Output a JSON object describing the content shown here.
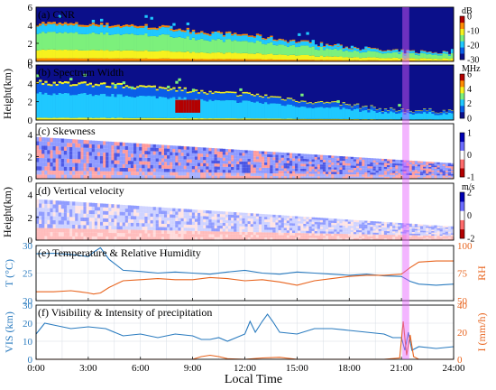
{
  "chart_data": [
    {
      "id": "a",
      "type": "heatmap",
      "title": "(a) CNR",
      "ylabel": "Height(km)",
      "yticks": [
        "0",
        "2",
        "4",
        "6"
      ],
      "ylim": [
        0,
        6
      ],
      "colorbar": {
        "unit": "dB",
        "ticks": [
          "0",
          "-10",
          "-20",
          "-30"
        ],
        "range": [
          -30,
          0
        ],
        "colors": [
          "#0b0f8a",
          "#0a5ee8",
          "#1fc8ff",
          "#7cf07c",
          "#f6f21e",
          "#ff8a00",
          "#b40000"
        ]
      },
      "top_boundary_km": [
        [
          0,
          4.3
        ],
        [
          3,
          4.1
        ],
        [
          6,
          4.0
        ],
        [
          8,
          3.7
        ],
        [
          10,
          3.2
        ],
        [
          12,
          3.0
        ],
        [
          14,
          2.5
        ],
        [
          16,
          2.0
        ],
        [
          18,
          1.6
        ],
        [
          20,
          1.2
        ],
        [
          21,
          1.1
        ],
        [
          22,
          1.1
        ],
        [
          24,
          1.0
        ]
      ]
    },
    {
      "id": "b",
      "type": "heatmap",
      "title": "(b) Spectrum Width",
      "yticks": [
        "0",
        "2",
        "4",
        "6"
      ],
      "ylim": [
        0,
        6
      ],
      "colorbar": {
        "unit": "MHz",
        "ticks": [
          "6",
          "4",
          "2",
          "0"
        ],
        "range": [
          0,
          6
        ],
        "colors": [
          "#0b0f8a",
          "#0a5ee8",
          "#1fc8ff",
          "#7cf07c",
          "#f6f21e",
          "#ff8a00",
          "#b40000"
        ]
      },
      "top_boundary_km": [
        [
          0,
          4.2
        ],
        [
          3,
          4.0
        ],
        [
          6,
          3.7
        ],
        [
          8,
          3.5
        ],
        [
          10,
          3.0
        ],
        [
          12,
          2.9
        ],
        [
          14,
          2.5
        ],
        [
          16,
          2.0
        ],
        [
          18,
          1.7
        ],
        [
          20,
          1.2
        ],
        [
          21,
          1.1
        ],
        [
          24,
          1.0
        ]
      ]
    },
    {
      "id": "c",
      "type": "heatmap",
      "title": "(c) Skewness",
      "ylabel": "Height(km)",
      "yticks": [
        "0",
        "2",
        "4"
      ],
      "ylim": [
        0,
        5
      ],
      "colorbar": {
        "unit": "",
        "ticks": [
          "1",
          "0",
          "-1"
        ],
        "range": [
          -1,
          1
        ],
        "colors": [
          "#b40000",
          "#ff6a6a",
          "#ffffff",
          "#6a6aff",
          "#0000b4"
        ]
      }
    },
    {
      "id": "d",
      "type": "heatmap",
      "title": "(d) Vertical velocity",
      "yticks": [
        "0",
        "2",
        "4"
      ],
      "ylim": [
        0,
        5
      ],
      "colorbar": {
        "unit": "m/s",
        "ticks": [
          "2",
          "0",
          "-2"
        ],
        "range": [
          -2,
          2
        ],
        "colors": [
          "#b40000",
          "#ff6a6a",
          "#ffffff",
          "#6a6aff",
          "#0000b4"
        ]
      }
    },
    {
      "id": "e",
      "type": "line",
      "title": "(e) Temperature & Relative Humidity",
      "ylabel_left": "T (°C)",
      "ylabel_right": "RH",
      "yticks_left": [
        "20",
        "25",
        "30"
      ],
      "ylim_left": [
        20,
        30
      ],
      "yticks_right": [
        "50",
        "75",
        "100"
      ],
      "ylim_right": [
        50,
        100
      ],
      "series": [
        {
          "axis": "left",
          "color": "#2a7bbf",
          "x": [
            0,
            1,
            2,
            2.5,
            3,
            3.3,
            3.7,
            4.2,
            5,
            6,
            7,
            8,
            9,
            10,
            11,
            12,
            13,
            14,
            15,
            16,
            17,
            18,
            19,
            20,
            21,
            21.5,
            22,
            23,
            24
          ],
          "y": [
            28.5,
            28.6,
            28.4,
            28.2,
            28.0,
            28.8,
            29.6,
            27.5,
            25.5,
            25.3,
            25.0,
            25.2,
            25.0,
            24.8,
            25.2,
            25.5,
            25.0,
            24.8,
            25.2,
            25.0,
            24.8,
            24.6,
            24.8,
            24.5,
            24.4,
            23.5,
            23.0,
            22.8,
            23.0
          ]
        },
        {
          "axis": "right",
          "color": "#e8641e",
          "x": [
            0,
            1,
            2,
            2.5,
            3,
            3.3,
            3.7,
            4.2,
            5,
            6,
            7,
            8,
            9,
            10,
            11,
            12,
            13,
            14,
            15,
            16,
            17,
            18,
            19,
            20,
            21,
            21.5,
            22,
            23,
            24
          ],
          "y": [
            58,
            58,
            59,
            58,
            57,
            56,
            57,
            62,
            68,
            69,
            70,
            69,
            69,
            71,
            70,
            68,
            69,
            67,
            64,
            68,
            70,
            72,
            73,
            73,
            74,
            80,
            85,
            86,
            86
          ]
        }
      ]
    },
    {
      "id": "f",
      "type": "line",
      "title": "(f) Visibility & Intensity of precipitation",
      "ylabel_left": "VIS (km)",
      "ylabel_right": "I (mm/h)",
      "yticks_left": [
        "0",
        "10",
        "20",
        "30"
      ],
      "ylim_left": [
        0,
        30
      ],
      "yticks_right": [
        "0",
        "20",
        "40"
      ],
      "ylim_right": [
        0,
        40
      ],
      "xlabel": "Local Time",
      "xticks": [
        "0:00",
        "3:00",
        "6:00",
        "9:00",
        "12:00",
        "15:00",
        "18:00",
        "21:00",
        "24:00"
      ],
      "xlim": [
        0,
        24
      ],
      "series": [
        {
          "axis": "left",
          "color": "#2a7bbf",
          "x": [
            0,
            0.5,
            1,
            2,
            3,
            4,
            5,
            6,
            7,
            8,
            9,
            9.5,
            10,
            10.5,
            11,
            11.5,
            12,
            12.3,
            12.6,
            13,
            13.3,
            13.6,
            14,
            15,
            16,
            17,
            18,
            19,
            20,
            20.5,
            21,
            21.2,
            21.4,
            21.6,
            22,
            23,
            24
          ],
          "y": [
            14,
            20,
            19,
            17,
            18,
            17,
            13,
            14,
            12,
            14,
            13,
            11,
            11,
            12,
            10,
            12,
            14,
            21,
            15,
            21,
            25,
            21,
            15,
            14,
            17,
            17,
            16,
            15,
            14,
            12,
            12,
            5,
            15,
            5,
            7,
            6,
            7
          ]
        },
        {
          "axis": "right",
          "color": "#e8641e",
          "x": [
            0,
            8,
            9,
            9.5,
            10,
            10.5,
            11,
            12,
            13,
            14,
            15,
            18,
            20,
            20.9,
            21.1,
            21.3,
            21.5,
            21.7,
            22,
            24
          ],
          "y": [
            0,
            0,
            0,
            2,
            3,
            2,
            0.5,
            0,
            1,
            1.5,
            0,
            0,
            0,
            1,
            28,
            3,
            18,
            2,
            0,
            0
          ]
        }
      ]
    }
  ],
  "event_band": {
    "start_hour": 21.05,
    "end_hour": 21.45,
    "color": "#e55cff"
  }
}
